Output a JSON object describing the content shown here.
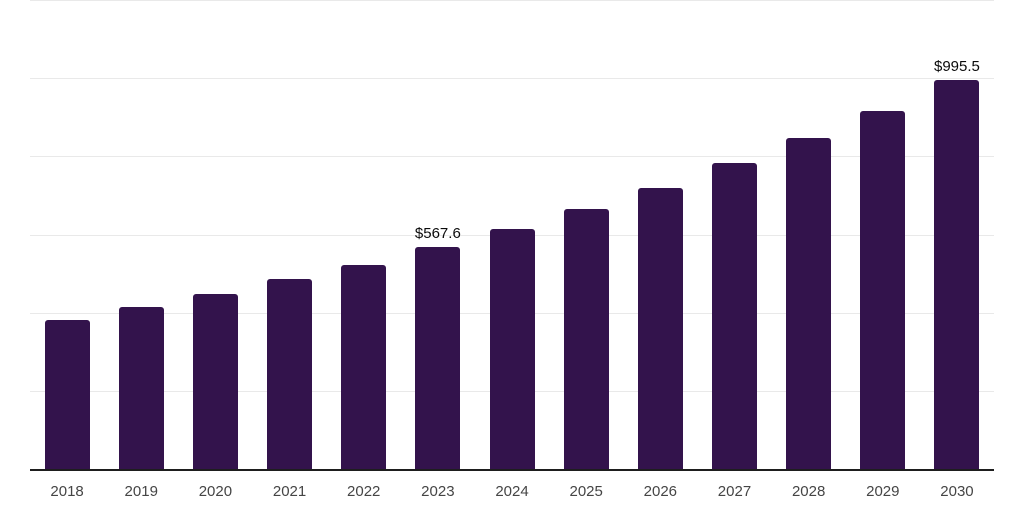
{
  "theme": {
    "background": "#ffffff",
    "bar_color": "#33134c",
    "gridline_color": "#e9e9e9",
    "axis_line_color": "#1e1e1e",
    "x_label_color": "#454545",
    "value_label_color": "#0b0b0b"
  },
  "chart_data": {
    "type": "bar",
    "title": "",
    "xlabel": "",
    "ylabel": "",
    "categories": [
      "2018",
      "2019",
      "2020",
      "2021",
      "2022",
      "2023",
      "2024",
      "2025",
      "2026",
      "2027",
      "2028",
      "2029",
      "2030"
    ],
    "values": [
      382,
      415,
      448,
      485,
      522,
      567.6,
      615,
      665,
      720,
      783,
      848,
      916,
      995.5
    ],
    "value_labels": {
      "2023": "$567.6",
      "2030": "$995.5"
    },
    "ylim": [
      0,
      1200
    ],
    "gridline_values": [
      200,
      400,
      600,
      800,
      1000,
      1200
    ],
    "grid": "horizontal only, no y-axis tick labels",
    "legend": "none"
  }
}
